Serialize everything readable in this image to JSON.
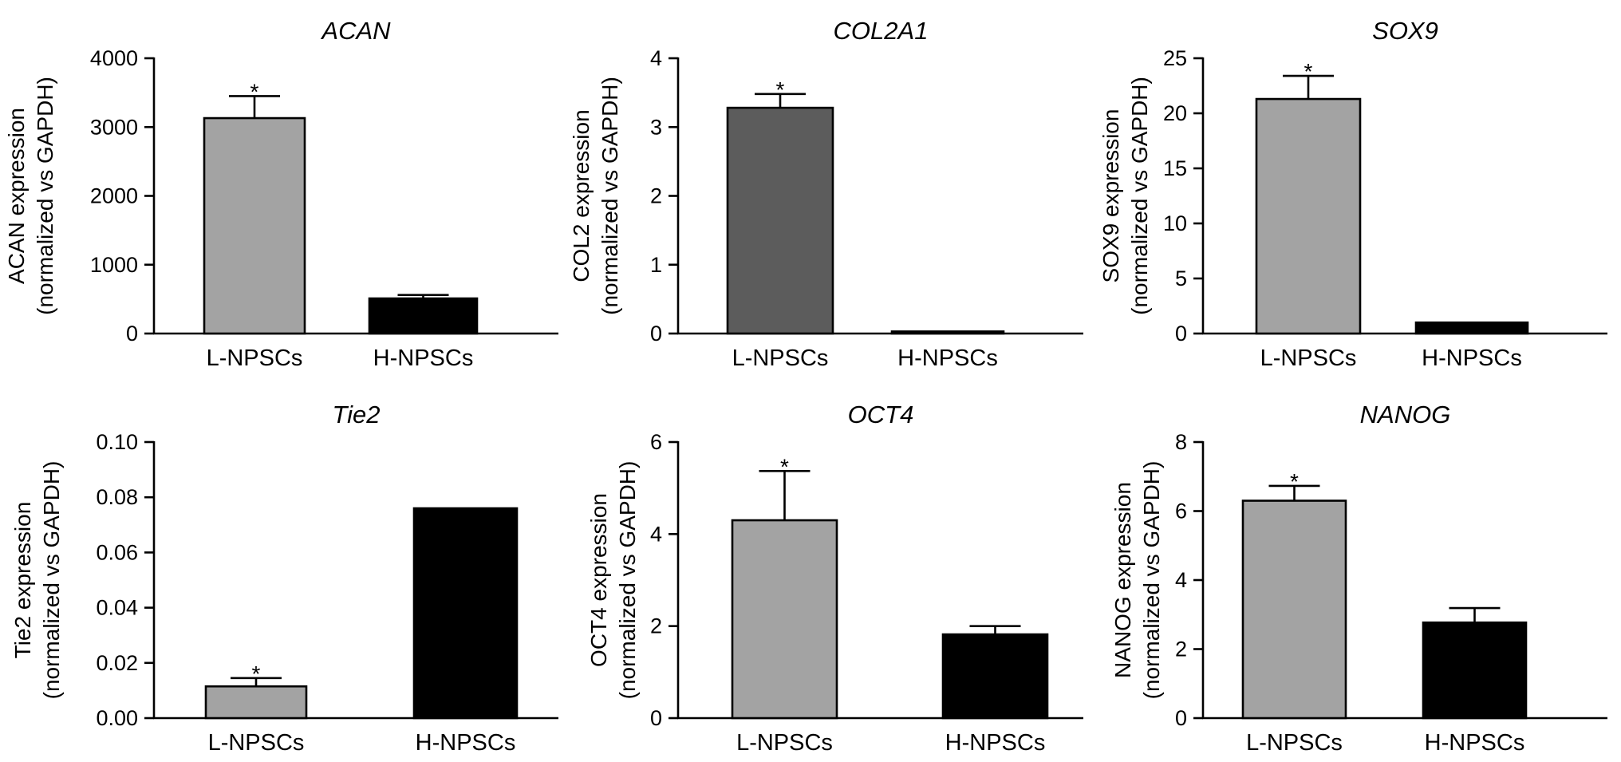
{
  "chart_data": [
    {
      "type": "bar",
      "title": "ACAN",
      "ylabel": [
        "ACAN expression",
        "(normalized vs GAPDH)"
      ],
      "categories": [
        "L-NPSCs",
        "H-NPSCs"
      ],
      "values": [
        3130,
        510
      ],
      "errors": [
        320,
        50
      ],
      "significance": [
        "*",
        ""
      ],
      "ylim": [
        0,
        4000
      ],
      "yticks": [
        "0",
        "1000",
        "2000",
        "3000",
        "4000"
      ],
      "colors": [
        "#a3a3a3",
        "#000000"
      ]
    },
    {
      "type": "bar",
      "title": "COL2A1",
      "ylabel": [
        "COL2 expression",
        "(normalized vs GAPDH)"
      ],
      "categories": [
        "L-NPSCs",
        "H-NPSCs"
      ],
      "values": [
        3.28,
        0.03
      ],
      "errors": [
        0.2,
        0
      ],
      "significance": [
        "*",
        ""
      ],
      "ylim": [
        0,
        4
      ],
      "yticks": [
        "0",
        "1",
        "2",
        "3",
        "4"
      ],
      "colors": [
        "#5c5c5c",
        "#000000"
      ]
    },
    {
      "type": "bar",
      "title": "SOX9",
      "ylabel": [
        "SOX9 expression",
        "(normalized vs GAPDH)"
      ],
      "categories": [
        "L-NPSCs",
        "H-NPSCs"
      ],
      "values": [
        21.3,
        1.0
      ],
      "errors": [
        2.1,
        0
      ],
      "significance": [
        "*",
        ""
      ],
      "ylim": [
        0,
        25
      ],
      "yticks": [
        "0",
        "5",
        "10",
        "15",
        "20",
        "25"
      ],
      "colors": [
        "#a3a3a3",
        "#000000"
      ]
    },
    {
      "type": "bar",
      "title": "Tie2",
      "ylabel": [
        "Tie2 expression",
        "(normalized vs GAPDH)"
      ],
      "categories": [
        "L-NPSCs",
        "H-NPSCs"
      ],
      "values": [
        0.0115,
        0.076
      ],
      "errors": [
        0.003,
        0
      ],
      "significance": [
        "*",
        ""
      ],
      "ylim": [
        0,
        0.1
      ],
      "yticks": [
        "0.00",
        "0.02",
        "0.04",
        "0.06",
        "0.08",
        "0.10"
      ],
      "colors": [
        "#a3a3a3",
        "#000000"
      ]
    },
    {
      "type": "bar",
      "title": "OCT4",
      "ylabel": [
        "OCT4 expression",
        "(normalized vs GAPDH)"
      ],
      "categories": [
        "L-NPSCs",
        "H-NPSCs"
      ],
      "values": [
        4.3,
        1.82
      ],
      "errors": [
        1.07,
        0.18
      ],
      "significance": [
        "*",
        ""
      ],
      "ylim": [
        0,
        6
      ],
      "yticks": [
        "0",
        "2",
        "4",
        "6"
      ],
      "colors": [
        "#a3a3a3",
        "#000000"
      ]
    },
    {
      "type": "bar",
      "title": "NANOG",
      "ylabel": [
        "NANOG expression",
        "(normalized vs GAPDH)"
      ],
      "categories": [
        "L-NPSCs",
        "H-NPSCs"
      ],
      "values": [
        6.3,
        2.77
      ],
      "errors": [
        0.43,
        0.42
      ],
      "significance": [
        "*",
        ""
      ],
      "ylim": [
        0,
        8
      ],
      "yticks": [
        "0",
        "2",
        "4",
        "6",
        "8"
      ],
      "colors": [
        "#a3a3a3",
        "#000000"
      ]
    }
  ]
}
